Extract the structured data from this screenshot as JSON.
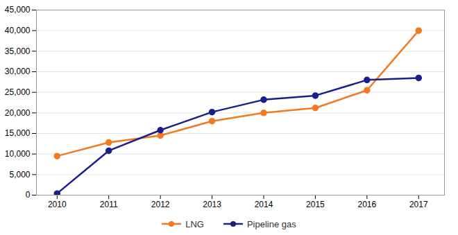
{
  "chart_data": {
    "type": "line",
    "x": [
      2010,
      2011,
      2012,
      2013,
      2014,
      2015,
      2016,
      2017
    ],
    "xlim": [
      2009.6,
      2017.5
    ],
    "xticks": [
      2010,
      2011,
      2012,
      2013,
      2014,
      2015,
      2016,
      2017
    ],
    "ylim": [
      0,
      45000
    ],
    "yticks": [
      0,
      {
        "value": 5000,
        "label": "5,000"
      },
      {
        "value": 10000,
        "label": "10,000"
      },
      {
        "value": 15000,
        "label": "15,000"
      },
      {
        "value": 20000,
        "label": "20,000"
      },
      {
        "value": 25000,
        "label": "25,000"
      },
      {
        "value": 30000,
        "label": "30,000"
      },
      {
        "value": 35000,
        "label": "35,000"
      },
      {
        "value": 40000,
        "label": "40,000"
      },
      {
        "value": 45000,
        "label": "45,000"
      }
    ],
    "grid": true,
    "legend": "bottom",
    "marker": "circle",
    "series": [
      {
        "name": "LNG",
        "color": "#f47920",
        "values": [
          9500,
          12800,
          14500,
          18000,
          20000,
          21200,
          25500,
          40000
        ]
      },
      {
        "name": "Pipeline gas",
        "color": "#1a1f8c",
        "values": [
          400,
          10800,
          15800,
          20200,
          23200,
          24200,
          28000,
          28500
        ]
      }
    ]
  }
}
